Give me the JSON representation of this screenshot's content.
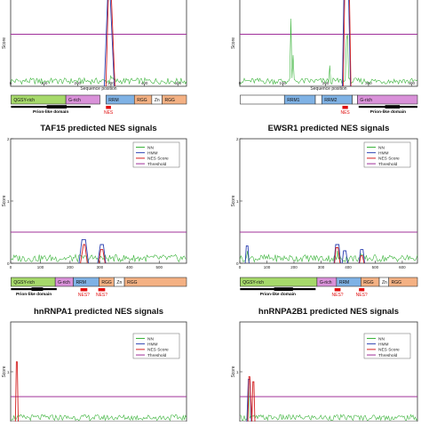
{
  "colors": {
    "nn": "#3cb43c",
    "hmm": "#2a3fb0",
    "nes_score": "#d42020",
    "threshold": "#a0309a",
    "red_marker": "#e01010"
  },
  "legend_labels": [
    "NN",
    "HMM",
    "NES Score",
    "Threshold"
  ],
  "chart_data": [
    {
      "id": "fus",
      "type": "line",
      "title": "",
      "xlabel": "Sequence position",
      "ylabel": "Score",
      "xlim": [
        0,
        526
      ],
      "ylim": [
        0,
        1
      ],
      "xticks": [
        "0",
        "100",
        "200",
        "300",
        "400",
        "500"
      ],
      "threshold": 0.5,
      "nn_peaks": [
        [
          130,
          0.06
        ],
        [
          300,
          0.1
        ],
        [
          305,
          0.08
        ]
      ],
      "peaks": [
        {
          "series": "HMM",
          "x": [
            280,
            290,
            298,
            310
          ],
          "y": [
            0,
            0.85,
            0.85,
            0
          ]
        },
        {
          "series": "NES Score",
          "x": [
            285,
            293,
            300,
            312
          ],
          "y": [
            0,
            0.95,
            0.95,
            0
          ]
        }
      ],
      "domains": [
        {
          "label": "QGSY-rich",
          "start": 1,
          "end": 165,
          "color": "#a6d96a"
        },
        {
          "label": "G-rich",
          "start": 165,
          "end": 267,
          "color": "#d991d9"
        },
        {
          "label": "RRM",
          "start": 285,
          "end": 370,
          "color": "#7fb2e5"
        },
        {
          "label": "RGG",
          "start": 370,
          "end": 422,
          "color": "#f4b183"
        },
        {
          "label": "Zn",
          "start": 422,
          "end": 453,
          "color": "#ffffff"
        },
        {
          "label": "RGG",
          "start": 453,
          "end": 526,
          "color": "#f4b183"
        }
      ],
      "bar_labels": [
        {
          "text": "Prion-like domain",
          "start": 1,
          "end": 239,
          "color": "#000000"
        },
        {
          "text": "NES",
          "start": 285,
          "end": 300,
          "color": "#e01010"
        }
      ]
    },
    {
      "id": "tdp43",
      "type": "line",
      "title": "",
      "xlabel": "Sequence position",
      "ylabel": "Score",
      "xlim": [
        0,
        414
      ],
      "ylim": [
        0,
        1
      ],
      "xticks": [
        "0",
        "100",
        "200",
        "300",
        "400"
      ],
      "threshold": 0.5,
      "nn_peaks": [
        [
          118,
          0.65
        ],
        [
          125,
          0.3
        ],
        [
          210,
          0.2
        ],
        [
          248,
          0.45
        ],
        [
          252,
          0.5
        ]
      ],
      "peaks": [
        {
          "series": "HMM",
          "x": [
            239,
            243,
            253,
            258
          ],
          "y": [
            0,
            0.98,
            0.98,
            0
          ]
        },
        {
          "series": "NES Score",
          "x": [
            241,
            245,
            255,
            259
          ],
          "y": [
            0,
            1.0,
            1.0,
            0
          ]
        }
      ],
      "domains": [
        {
          "label": "",
          "start": 1,
          "end": 104,
          "color": "#ffffff"
        },
        {
          "label": "RRM1",
          "start": 104,
          "end": 176,
          "color": "#7fb2e5"
        },
        {
          "label": "",
          "start": 176,
          "end": 191,
          "color": "#ffffff"
        },
        {
          "label": "RRM2",
          "start": 191,
          "end": 262,
          "color": "#7fb2e5"
        },
        {
          "label": "",
          "start": 262,
          "end": 274,
          "color": "#ffffff"
        },
        {
          "label": "G-rich",
          "start": 274,
          "end": 414,
          "color": "#d991d9"
        }
      ],
      "bar_labels": [
        {
          "text": "NES",
          "start": 239,
          "end": 252,
          "color": "#e01010"
        },
        {
          "text": "Prion-like domain",
          "start": 277,
          "end": 414,
          "color": "#000000"
        }
      ]
    },
    {
      "id": "taf15",
      "type": "line",
      "title": "TAF15 predicted NES signals",
      "xlabel": "",
      "ylabel": "Score",
      "xlim": [
        0,
        592
      ],
      "ylim": [
        0,
        2
      ],
      "yticks": [
        "0",
        "1",
        "2"
      ],
      "xticks": [
        "0",
        "100",
        "200",
        "300",
        "400",
        "500"
      ],
      "threshold": 0.5,
      "nn_peaks": [
        [
          245,
          0.08
        ],
        [
          310,
          0.06
        ]
      ],
      "peaks": [
        {
          "series": "HMM",
          "x": [
            230,
            240,
            252,
            262
          ],
          "y": [
            0,
            0.38,
            0.38,
            0
          ]
        },
        {
          "series": "NES Score",
          "x": [
            235,
            245,
            250,
            258
          ],
          "y": [
            0,
            0.3,
            0.3,
            0
          ]
        },
        {
          "series": "HMM",
          "x": [
            293,
            302,
            312,
            320
          ],
          "y": [
            0,
            0.3,
            0.3,
            0
          ]
        },
        {
          "series": "NES Score",
          "x": [
            297,
            303,
            310,
            318
          ],
          "y": [
            0,
            0.22,
            0.22,
            0
          ]
        }
      ],
      "domains": [
        {
          "label": "QGSY-rich",
          "start": 1,
          "end": 150,
          "color": "#a6d96a"
        },
        {
          "label": "G-rich",
          "start": 150,
          "end": 211,
          "color": "#d991d9"
        },
        {
          "label": "RRM",
          "start": 211,
          "end": 297,
          "color": "#7fb2e5"
        },
        {
          "label": "RGG",
          "start": 297,
          "end": 348,
          "color": "#f4b183"
        },
        {
          "label": "Zn",
          "start": 348,
          "end": 383,
          "color": "#ffffff"
        },
        {
          "label": "RGG",
          "start": 383,
          "end": 592,
          "color": "#f4b183"
        }
      ],
      "bar_labels": [
        {
          "text": "Prion-like domain",
          "start": 1,
          "end": 155,
          "color": "#000000"
        },
        {
          "text": "NES?",
          "start": 235,
          "end": 258,
          "color": "#e01010"
        },
        {
          "text": "NES?",
          "start": 295,
          "end": 318,
          "color": "#e01010"
        }
      ]
    },
    {
      "id": "ewsr1",
      "type": "line",
      "title": "EWSR1 predicted NES signals",
      "xlabel": "",
      "ylabel": "Score",
      "xlim": [
        0,
        656
      ],
      "ylim": [
        0,
        2
      ],
      "yticks": [
        "0",
        "1",
        "2"
      ],
      "xticks": [
        "0",
        "100",
        "200",
        "300",
        "400",
        "500",
        "600"
      ],
      "threshold": 0.5,
      "nn_peaks": [
        [
          25,
          0.1
        ],
        [
          30,
          0.2
        ],
        [
          360,
          0.2
        ],
        [
          448,
          0.15
        ]
      ],
      "peaks": [
        {
          "series": "HMM",
          "x": [
            348,
            354,
            366,
            372
          ],
          "y": [
            0,
            0.3,
            0.3,
            0
          ]
        },
        {
          "series": "NES Score",
          "x": [
            350,
            355,
            363,
            370
          ],
          "y": [
            0,
            0.25,
            0.25,
            0
          ]
        },
        {
          "series": "HMM",
          "x": [
            378,
            383,
            392,
            398
          ],
          "y": [
            0,
            0.2,
            0.2,
            0
          ]
        },
        {
          "series": "HMM",
          "x": [
            440,
            446,
            455,
            461
          ],
          "y": [
            0,
            0.22,
            0.22,
            0
          ]
        },
        {
          "series": "NES Score",
          "x": [
            442,
            447,
            453,
            459
          ],
          "y": [
            0,
            0.12,
            0.12,
            0
          ]
        },
        {
          "series": "HMM",
          "x": [
            20,
            24,
            30,
            34
          ],
          "y": [
            0,
            0.28,
            0.28,
            0
          ]
        }
      ],
      "domains": [
        {
          "label": "QGSY-rich",
          "start": 1,
          "end": 285,
          "color": "#a6d96a"
        },
        {
          "label": "G-rich",
          "start": 285,
          "end": 357,
          "color": "#d991d9"
        },
        {
          "label": "RRM",
          "start": 357,
          "end": 447,
          "color": "#7fb2e5"
        },
        {
          "label": "RGG",
          "start": 447,
          "end": 515,
          "color": "#f4b183"
        },
        {
          "label": "Zn",
          "start": 515,
          "end": 550,
          "color": "#ffffff"
        },
        {
          "label": "RGG",
          "start": 550,
          "end": 656,
          "color": "#f4b183"
        }
      ],
      "bar_labels": [
        {
          "text": "Prion-like domain",
          "start": 1,
          "end": 280,
          "color": "#000000"
        },
        {
          "text": "NES?",
          "start": 350,
          "end": 372,
          "color": "#e01010"
        },
        {
          "text": "NES?",
          "start": 440,
          "end": 460,
          "color": "#e01010"
        }
      ]
    },
    {
      "id": "hnrnpa1",
      "type": "line",
      "title": "hnRNPA1 predicted NES signals",
      "xlabel": "",
      "ylabel": "Score",
      "xlim": [
        0,
        372
      ],
      "ylim": [
        0,
        2
      ],
      "yticks": [
        "1"
      ],
      "xticks": [],
      "threshold": 0.5,
      "nn_peaks": [],
      "peaks": [
        {
          "series": "NES Score",
          "x": [
            10,
            12,
            14,
            16
          ],
          "y": [
            0,
            1.2,
            1.2,
            0
          ]
        }
      ],
      "domains": [],
      "bar_labels": []
    },
    {
      "id": "hnrnpa2b1",
      "type": "line",
      "title": "hnRNPA2B1 predicted NES signals",
      "xlabel": "",
      "ylabel": "Score",
      "xlim": [
        0,
        353
      ],
      "ylim": [
        0,
        2
      ],
      "yticks": [
        "1"
      ],
      "xticks": [],
      "threshold": 0.5,
      "nn_peaks": [
        [
          18,
          0.7
        ]
      ],
      "peaks": [
        {
          "series": "HMM",
          "x": [
            14,
            17,
            20,
            23
          ],
          "y": [
            0,
            0.85,
            0.85,
            0
          ]
        },
        {
          "series": "NES Score",
          "x": [
            16,
            18,
            20,
            24
          ],
          "y": [
            0,
            0.9,
            0.9,
            0
          ]
        },
        {
          "series": "NES Score",
          "x": [
            24,
            26,
            28,
            30
          ],
          "y": [
            0,
            0.8,
            0.8,
            0
          ]
        }
      ],
      "domains": [],
      "bar_labels": []
    }
  ]
}
